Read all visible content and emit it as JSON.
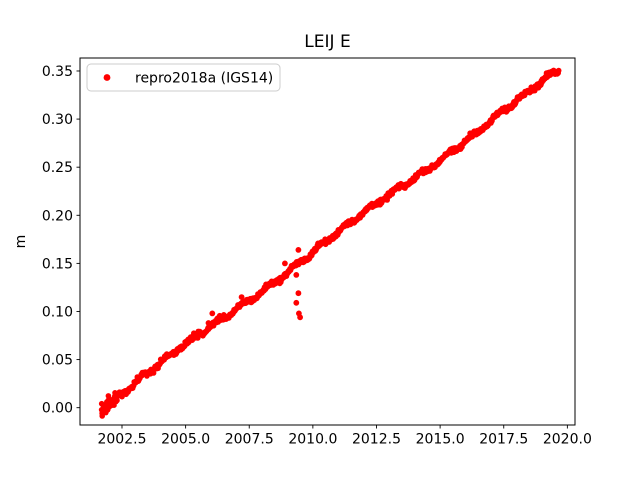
{
  "chart_data": {
    "type": "scatter",
    "title": "LEIJ E",
    "xlabel": "",
    "ylabel": "m",
    "grid": false,
    "xlim": [
      2000.85,
      2020.3
    ],
    "ylim": [
      -0.018,
      0.3635
    ],
    "x_ticks": [
      2002.5,
      2005.0,
      2007.5,
      2010.0,
      2012.5,
      2015.0,
      2017.5,
      2020.0
    ],
    "x_tick_labels": [
      "2002.5",
      "2005.0",
      "2007.5",
      "2010.0",
      "2012.5",
      "2015.0",
      "2017.5",
      "2020.0"
    ],
    "y_ticks": [
      0.0,
      0.05,
      0.1,
      0.15,
      0.2,
      0.25,
      0.3,
      0.35
    ],
    "y_tick_labels": [
      "0.00",
      "0.05",
      "0.10",
      "0.15",
      "0.20",
      "0.25",
      "0.30",
      "0.35"
    ],
    "legend": {
      "label": "repro2018a (IGS14)",
      "location": "upper left",
      "marker": "dot",
      "marker_color": "#ff0000",
      "border_color": "#cccccc",
      "background_color": "#ffffff"
    },
    "series": [
      {
        "name": "repro2018a (IGS14)",
        "color": "#ff0000",
        "marker": "dot",
        "marker_radius_px": 2.8,
        "trend": {
          "start_year": 2001.7,
          "end_year": 2019.66,
          "start_value": 0.0,
          "end_value": 0.35,
          "slope_m_per_year": 0.0195
        },
        "annual_wiggle_amplitude": 0.002,
        "slow_wiggle_amplitude": 0.0022,
        "slow_wiggle_period_years": 7,
        "noise_sigma": 0.0013,
        "start_cluster_end_year": 2002.3,
        "start_cluster_noise_factor": 2.1,
        "sample_step_years": 0.02,
        "sampled_points": [
          [
            2002.0,
            0.006
          ],
          [
            2003.0,
            0.027
          ],
          [
            2004.0,
            0.046
          ],
          [
            2005.0,
            0.068
          ],
          [
            2006.0,
            0.085
          ],
          [
            2007.0,
            0.104
          ],
          [
            2008.0,
            0.124
          ],
          [
            2009.0,
            0.143
          ],
          [
            2010.0,
            0.163
          ],
          [
            2011.0,
            0.182
          ],
          [
            2012.0,
            0.201
          ],
          [
            2013.0,
            0.221
          ],
          [
            2014.0,
            0.24
          ],
          [
            2015.0,
            0.26
          ],
          [
            2016.0,
            0.279
          ],
          [
            2017.0,
            0.298
          ],
          [
            2018.0,
            0.318
          ],
          [
            2019.0,
            0.337
          ],
          [
            2019.66,
            0.35
          ]
        ],
        "outliers_above": [
          [
            2005.9,
            0.088
          ],
          [
            2006.05,
            0.098
          ],
          [
            2007.2,
            0.115
          ],
          [
            2008.9,
            0.15
          ],
          [
            2009.43,
            0.164
          ]
        ],
        "outliers_below": [
          [
            2009.35,
            0.138
          ],
          [
            2009.43,
            0.119
          ],
          [
            2009.35,
            0.109
          ],
          [
            2009.45,
            0.098
          ],
          [
            2009.5,
            0.094
          ]
        ]
      }
    ]
  }
}
